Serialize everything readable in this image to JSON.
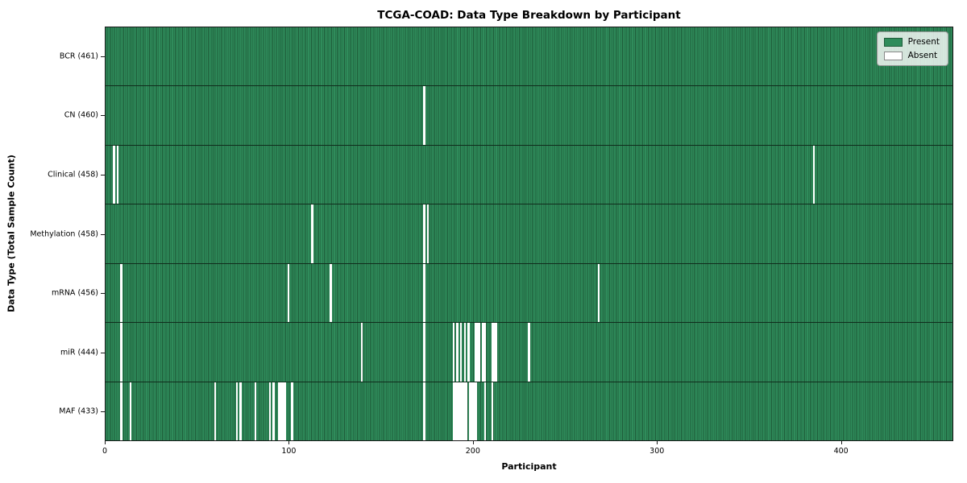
{
  "chart_data": {
    "type": "heatmap",
    "title": "TCGA-COAD: Data Type Breakdown by Participant",
    "xlabel": "Participant",
    "ylabel": "Data Type (Total Sample Count)",
    "n_participants": 461,
    "x_ticks": [
      0,
      100,
      200,
      300,
      400
    ],
    "xlim": [
      0,
      461
    ],
    "grid": false,
    "legend_position": "upper right",
    "legend": [
      {
        "label": "Present",
        "color": "#2f8c5b"
      },
      {
        "label": "Absent",
        "color": "#ffffff"
      }
    ],
    "colors": {
      "present_fill": "#2f8c5b",
      "present_edge": "#1e5c39",
      "absent_fill": "#ffffff",
      "row_separator": "#102c1c",
      "axis_frame": "#1a1a1a"
    },
    "rows": [
      {
        "label": "BCR (461)",
        "data_type": "BCR",
        "total": 461,
        "absent": []
      },
      {
        "label": "CN (460)",
        "data_type": "CN",
        "total": 460,
        "absent": [
          173
        ]
      },
      {
        "label": "Clinical (458)",
        "data_type": "Clinical",
        "total": 458,
        "absent": [
          4,
          6,
          385
        ]
      },
      {
        "label": "Methylation (458)",
        "data_type": "Methylation",
        "total": 458,
        "absent": [
          112,
          173,
          175
        ]
      },
      {
        "label": "mRNA (456)",
        "data_type": "mRNA",
        "total": 456,
        "absent": [
          8,
          99,
          122,
          173,
          268
        ]
      },
      {
        "label": "miR (444)",
        "data_type": "miR",
        "total": 444,
        "absent": [
          8,
          139,
          173,
          189,
          191,
          193,
          195,
          197,
          201,
          202,
          203,
          205,
          206,
          210,
          211,
          212,
          230
        ]
      },
      {
        "label": "MAF (433)",
        "data_type": "MAF",
        "total": 433,
        "absent": [
          8,
          13,
          59,
          71,
          73,
          81,
          89,
          91,
          94,
          95,
          96,
          97,
          101,
          173,
          189,
          190,
          191,
          192,
          193,
          194,
          195,
          196,
          198,
          199,
          200,
          201,
          206,
          210
        ]
      }
    ]
  }
}
